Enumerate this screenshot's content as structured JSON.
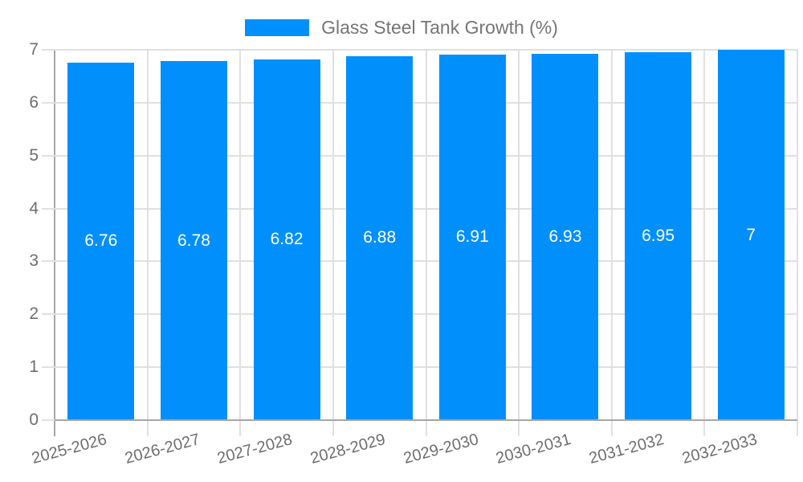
{
  "legend": {
    "label": "Glass Steel Tank Growth (%)"
  },
  "chart_data": {
    "type": "bar",
    "title": "Glass Steel Tank Growth (%)",
    "categories": [
      "2025-2026",
      "2026-2027",
      "2027-2028",
      "2028-2029",
      "2029-2030",
      "2030-2031",
      "2031-2032",
      "2032-2033"
    ],
    "values": [
      6.76,
      6.78,
      6.82,
      6.88,
      6.91,
      6.93,
      6.95,
      7
    ],
    "value_labels": [
      "6.76",
      "6.78",
      "6.82",
      "6.88",
      "6.91",
      "6.93",
      "6.95",
      "7"
    ],
    "y_ticks": [
      "0",
      "1",
      "2",
      "3",
      "4",
      "5",
      "6",
      "7"
    ],
    "ylim": [
      0,
      7
    ],
    "xlabel": "",
    "ylabel": "",
    "grid": true,
    "legend_position": "top",
    "x_label_rotation_deg": -15,
    "colors": {
      "bar": "#008FFB",
      "bar_value_label": "#FFFFFF",
      "axis_text": "#6E6E6E",
      "legend_text": "#757575",
      "gridline": "#E0E0E0",
      "axis_line": "#A6A6A6",
      "background": "#FFFFFF"
    }
  }
}
